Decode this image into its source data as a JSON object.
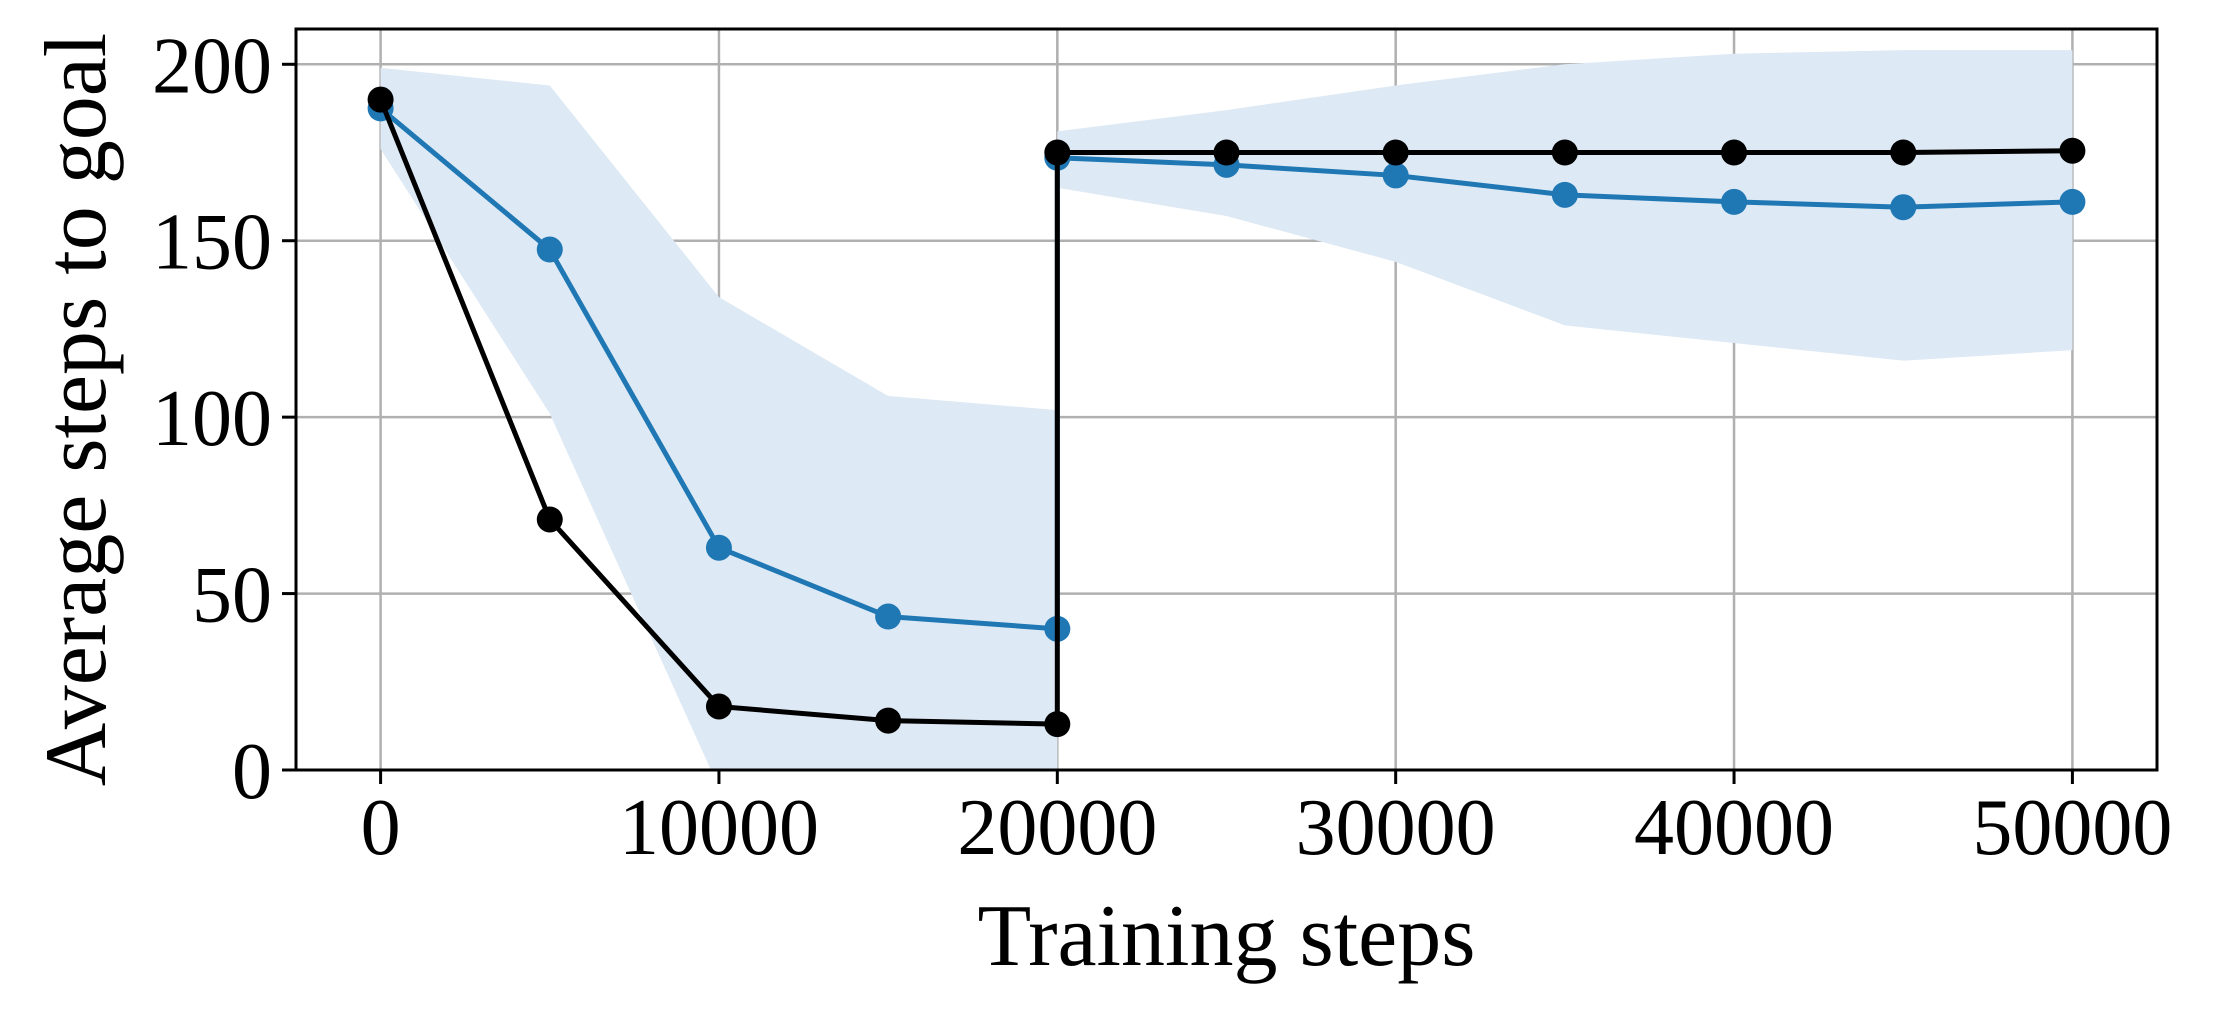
{
  "chart_data": {
    "type": "line",
    "title": "",
    "xlabel": "Training steps",
    "ylabel": "Average steps to goal",
    "xlim": [
      -2500,
      52500
    ],
    "ylim": [
      0,
      210
    ],
    "xticks": [
      0,
      10000,
      20000,
      30000,
      40000,
      50000
    ],
    "yticks": [
      0,
      50,
      100,
      150,
      200
    ],
    "grid": true,
    "legend": "none",
    "band": {
      "color": "#dde9f4",
      "x": [
        0,
        5000,
        10000,
        15000,
        20000,
        20000,
        25000,
        30000,
        35000,
        40000,
        45000,
        50000
      ],
      "upper": [
        199,
        194,
        134,
        106,
        102,
        181,
        187,
        194,
        200,
        203,
        204,
        204
      ],
      "lower": [
        176,
        101,
        -5,
        -5,
        -5,
        165,
        157,
        144,
        126,
        121,
        116,
        119
      ]
    },
    "series": [
      {
        "color": "#1f77b4",
        "x": [
          0,
          5000,
          10000,
          15000,
          20000,
          20000,
          25000,
          30000,
          35000,
          40000,
          45000,
          50000
        ],
        "values": [
          187.5,
          147.5,
          63,
          43.5,
          40,
          173.5,
          171.5,
          168.5,
          163,
          161,
          159.5,
          161
        ]
      },
      {
        "color": "#000000",
        "x": [
          0,
          5000,
          10000,
          15000,
          20000,
          20000,
          25000,
          30000,
          35000,
          40000,
          45000,
          50000
        ],
        "values": [
          190,
          71,
          18,
          14,
          13,
          175,
          175,
          175,
          175,
          175,
          175,
          175.5
        ]
      }
    ]
  }
}
